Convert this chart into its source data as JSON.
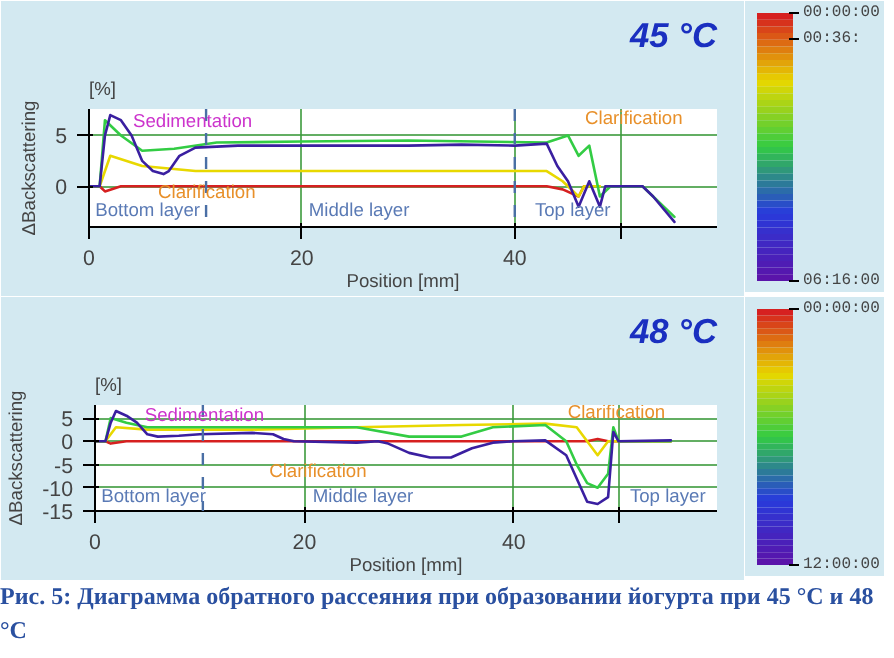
{
  "chart_data": [
    {
      "type": "line",
      "title": "45 °C",
      "ylabel": "ΔBackscattering",
      "xlabel": "Position [mm]",
      "xlim": [
        0,
        59
      ],
      "ylim": [
        -4,
        7.6
      ],
      "xticks": [
        0,
        20,
        40,
        {
          "value": 50,
          "label": null
        }
      ],
      "yticks": [
        0,
        5
      ],
      "grid": true,
      "clim": [
        0,
        6.2667
      ],
      "cticks": [
        {
          "value": 0,
          "label": "00:00:00"
        },
        {
          "value": 0.6,
          "label": "00:36:"
        },
        {
          "value": 6.2667,
          "label": "06:16:00"
        }
      ],
      "series": [
        {
          "color": "#d62020",
          "x": [
            0,
            1,
            1.5,
            3,
            10,
            20,
            30,
            40,
            43,
            44.5,
            46,
            46.5
          ],
          "values": [
            0,
            0,
            -0.5,
            0,
            0,
            0,
            0,
            0,
            0,
            -0.3,
            -1,
            0
          ]
        },
        {
          "color": "#e8d800",
          "x": [
            0,
            1,
            2,
            5,
            10,
            20,
            30,
            43,
            44.5,
            46,
            46.5,
            48
          ],
          "values": [
            0,
            0,
            3,
            2,
            1.5,
            1.5,
            1.5,
            1.5,
            0.5,
            -1,
            0,
            0
          ]
        },
        {
          "color": "#33cc44",
          "x": [
            0,
            1,
            1.5,
            3,
            5,
            8,
            12,
            20,
            30,
            43,
            45,
            46,
            47,
            48,
            49,
            52,
            53,
            55
          ],
          "values": [
            0,
            0,
            6.5,
            5,
            3.5,
            3.7,
            4.3,
            4.4,
            4.5,
            4.3,
            5,
            3,
            4,
            -1,
            0,
            0,
            -1,
            -3
          ]
        },
        {
          "color": "#3a1fa0",
          "x": [
            0,
            1,
            1.5,
            2,
            3,
            4,
            5,
            6,
            7,
            7.5,
            8.5,
            10,
            14,
            20,
            30,
            35,
            40,
            43,
            44,
            45,
            46,
            47,
            48,
            48.5,
            52,
            53,
            55
          ],
          "values": [
            0,
            0,
            5,
            7,
            6.5,
            5,
            2.5,
            1.5,
            1.2,
            1.5,
            3,
            3.8,
            4,
            4,
            4,
            4.1,
            4,
            4.2,
            2,
            0.5,
            -2,
            0.5,
            -2,
            0,
            0,
            -1,
            -3.5
          ]
        }
      ],
      "ref_lines": [
        {
          "axis": "x",
          "value": 11,
          "color": "#4a6fa5",
          "line_style": "dashed"
        },
        {
          "axis": "x",
          "value": 40,
          "color": "#4a6fa5",
          "line_style": "dashed"
        }
      ],
      "annotations": [
        "[%]",
        "Sedimentation",
        "Clarification",
        "Clarification",
        "Bottom layer",
        "Middle layer",
        "Top layer"
      ]
    },
    {
      "type": "line",
      "title": "48 °C",
      "ylabel": "ΔBackscattering",
      "xlabel": "Position [mm]",
      "xlim": [
        0,
        59.4
      ],
      "ylim": [
        -15,
        7.8
      ],
      "xticks": [
        0,
        20,
        40,
        {
          "value": 50,
          "label": null
        }
      ],
      "yticks": [
        -15,
        -10,
        -5,
        0,
        5
      ],
      "grid": true,
      "clim": [
        0,
        12
      ],
      "cticks": [
        {
          "value": 0,
          "label": "00:00:00"
        },
        {
          "value": 12,
          "label": "12:00:00"
        }
      ],
      "series": [
        {
          "color": "#d62020",
          "x": [
            0,
            1,
            1.5,
            3,
            10,
            20,
            30,
            40,
            47,
            48,
            49,
            55
          ],
          "values": [
            0,
            0,
            -0.5,
            0,
            0,
            0,
            0,
            0,
            0,
            0.5,
            0,
            0
          ]
        },
        {
          "color": "#e8d800",
          "x": [
            0,
            1,
            2,
            5,
            15,
            25,
            35,
            43,
            46,
            47,
            48,
            49,
            50,
            55
          ],
          "values": [
            0,
            0,
            3,
            2.5,
            2.5,
            3,
            3.5,
            3.8,
            3,
            0,
            -3,
            0,
            0,
            0
          ]
        },
        {
          "color": "#33cc44",
          "x": [
            0,
            1,
            1.5,
            3,
            5,
            15,
            25,
            30,
            35,
            38,
            43,
            45,
            46,
            47,
            48,
            49,
            49.5,
            50,
            55
          ],
          "values": [
            0,
            0,
            5,
            4,
            3,
            3,
            3,
            1,
            1,
            3,
            3.5,
            0,
            -5,
            -9,
            -10,
            -7,
            3,
            0,
            0
          ]
        },
        {
          "color": "#3a1fa0",
          "x": [
            0,
            1,
            1.5,
            2,
            3,
            4,
            5,
            6,
            8,
            10,
            15,
            17,
            18,
            19,
            25,
            27,
            28,
            30,
            32,
            34,
            36,
            38,
            40,
            43,
            45,
            46,
            47,
            48,
            49,
            49.5,
            50,
            55
          ],
          "values": [
            0,
            0,
            4,
            6.5,
            5.5,
            4,
            1.5,
            1,
            1.2,
            1.5,
            1.8,
            1.5,
            0.5,
            0,
            -0.3,
            0,
            -0.5,
            -2.5,
            -3.5,
            -3.5,
            -1.5,
            -0.3,
            0,
            0.2,
            -3,
            -8,
            -13,
            -13.5,
            -12,
            2,
            0,
            0.2
          ]
        }
      ],
      "ref_lines": [
        {
          "axis": "x",
          "value": 10.3,
          "color": "#4a6fa5",
          "line_style": "dashed"
        }
      ],
      "annotations": [
        "[%]",
        "Sedimentation",
        "Clarification",
        "Clarification",
        "Bottom layer",
        "Middle layer",
        "Top layer",
        "Рис. 5: Диаграмма обратного рассеяния при образовании йогурта при 45 °C и 48 °C"
      ]
    }
  ]
}
